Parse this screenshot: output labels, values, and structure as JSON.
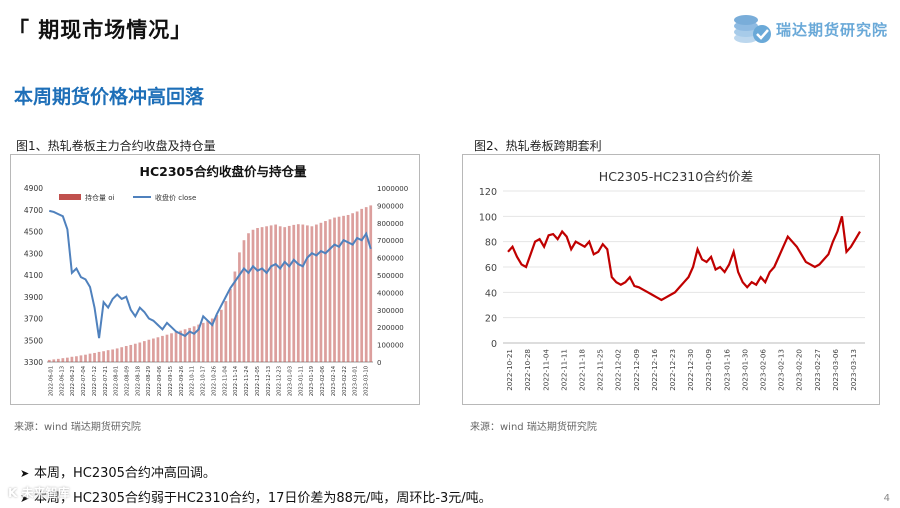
{
  "header": {
    "title": "「 期现市场情况」"
  },
  "logo": {
    "text": "瑞达期货研究院"
  },
  "subtitle": "本周期货价格冲高回落",
  "figure1": {
    "caption": "图1、热轧卷板主力合约收盘及持仓量",
    "source": "来源：wind    瑞达期货研究院"
  },
  "figure2": {
    "caption": "图2、热轧卷板跨期套利",
    "source": "来源：wind    瑞达期货研究院"
  },
  "bullets": [
    "本周，HC2305合约冲高回调。",
    "本周，HC2305合约弱于HC2310合约，17日价差为88元/吨，周环比-3元/吨。"
  ],
  "watermark": "K 未来智库",
  "page_number": "4",
  "chart_data": [
    {
      "type": "bar",
      "title": "HC2305合约收盘价与持仓量",
      "legend_position": "top-left",
      "colors": {
        "bars": "#c0504d",
        "line": "#4f81bd"
      },
      "y_left": {
        "ylim": [
          3300,
          4900
        ],
        "ticks": [
          "3300",
          "3500",
          "3700",
          "3900",
          "4100",
          "4300",
          "4500",
          "4700",
          "4900"
        ]
      },
      "y_right": {
        "ylim": [
          0,
          1000000
        ],
        "ticks": [
          "0",
          "100000",
          "200000",
          "300000",
          "400000",
          "500000",
          "600000",
          "700000",
          "800000",
          "900000",
          "1000000"
        ]
      },
      "x_tick_labels": [
        "2022-06-01",
        "2022-06-13",
        "2022-06-23",
        "2022-07-04",
        "2022-07-12",
        "2022-07-21",
        "2022-08-01",
        "2022-08-09",
        "2022-08-18",
        "2022-08-29",
        "2022-09-06",
        "2022-09-15",
        "2022-09-26",
        "2022-10-11",
        "2022-10-17",
        "2022-10-26",
        "2022-11-04",
        "2022-11-14",
        "2022-11-24",
        "2022-12-05",
        "2022-12-13",
        "2022-12-23",
        "2023-01-03",
        "2023-01-11",
        "2023-01-19",
        "2023-02-06",
        "2023-02-14",
        "2023-02-22",
        "2023-03-01",
        "2023-03-10"
      ],
      "series": [
        {
          "name": "持仓量 oi",
          "axis": "right",
          "values": [
            12000,
            15000,
            18000,
            22000,
            25000,
            30000,
            33000,
            38000,
            42000,
            48000,
            52000,
            58000,
            62000,
            68000,
            72000,
            78000,
            85000,
            92000,
            98000,
            105000,
            112000,
            120000,
            128000,
            135000,
            142000,
            150000,
            157000,
            165000,
            172000,
            180000,
            188000,
            196000,
            205000,
            215000,
            225000,
            236000,
            250000,
            270000,
            300000,
            350000,
            420000,
            520000,
            630000,
            700000,
            740000,
            760000,
            770000,
            775000,
            780000,
            785000,
            790000,
            780000,
            775000,
            782000,
            788000,
            792000,
            790000,
            785000,
            780000,
            790000,
            800000,
            810000,
            820000,
            830000,
            835000,
            840000,
            845000,
            855000,
            865000,
            880000,
            890000,
            900000
          ]
        },
        {
          "name": "收盘价 close",
          "axis": "left",
          "values": [
            4690,
            4680,
            4660,
            4640,
            4520,
            4120,
            4160,
            4080,
            4060,
            3990,
            3800,
            3520,
            3850,
            3800,
            3880,
            3920,
            3880,
            3900,
            3780,
            3720,
            3800,
            3760,
            3700,
            3680,
            3640,
            3600,
            3660,
            3620,
            3580,
            3560,
            3540,
            3580,
            3560,
            3600,
            3720,
            3680,
            3640,
            3740,
            3820,
            3900,
            3980,
            4040,
            4100,
            4160,
            4120,
            4180,
            4140,
            4160,
            4120,
            4180,
            4200,
            4160,
            4220,
            4180,
            4240,
            4200,
            4180,
            4260,
            4300,
            4280,
            4320,
            4300,
            4340,
            4380,
            4360,
            4420,
            4400,
            4380,
            4440,
            4420,
            4480,
            4340
          ]
        }
      ]
    },
    {
      "type": "line",
      "title": "HC2305-HC2310合约价差",
      "colors": {
        "line": "#c00000"
      },
      "ylim": [
        0,
        120
      ],
      "y_ticks": [
        "0",
        "20",
        "40",
        "60",
        "80",
        "100",
        "120"
      ],
      "x_tick_labels": [
        "2022-10-21",
        "2022-10-28",
        "2022-11-04",
        "2022-11-11",
        "2022-11-18",
        "2022-11-25",
        "2022-12-02",
        "2022-12-09",
        "2022-12-16",
        "2022-12-23",
        "2022-12-30",
        "2023-01-09",
        "2023-01-16",
        "2023-01-30",
        "2023-02-06",
        "2023-02-13",
        "2023-02-20",
        "2023-02-27",
        "2023-03-06",
        "2023-03-13"
      ],
      "series": [
        {
          "name": "",
          "values": [
            72,
            76,
            68,
            62,
            60,
            70,
            80,
            82,
            76,
            85,
            86,
            82,
            88,
            84,
            74,
            80,
            78,
            76,
            80,
            70,
            72,
            78,
            74,
            52,
            48,
            46,
            48,
            52,
            45,
            44,
            42,
            40,
            38,
            36,
            34,
            36,
            38,
            40,
            44,
            48,
            52,
            60,
            74,
            66,
            64,
            68,
            58,
            60,
            56,
            62,
            72,
            56,
            48,
            44,
            48,
            46,
            52,
            48,
            56,
            60,
            68,
            76,
            84,
            80,
            76,
            70,
            64,
            62,
            60,
            62,
            66,
            70,
            80,
            88,
            100,
            72,
            76,
            82,
            88
          ]
        }
      ]
    }
  ]
}
